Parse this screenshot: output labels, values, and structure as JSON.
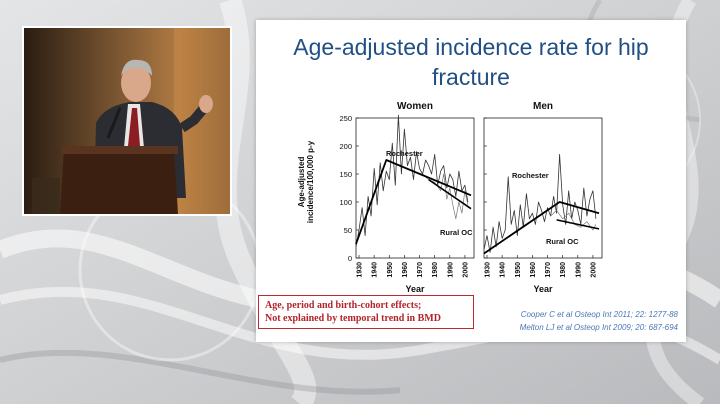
{
  "slide": {
    "title_line1": "Age-adjusted incidence rate for hip",
    "title_line2": "fracture",
    "note_line1": "Age, period and birth-cohort effects;",
    "note_line2": "Not explained by temporal trend in BMD",
    "ref1": "Cooper C et al Osteop Int 2011; 22: 1277-88",
    "ref2": "Melton LJ et al Osteop Int 2009; 20: 687-694"
  },
  "chart_data": {
    "type": "line",
    "ylabel_line1": "Age-adjusted",
    "ylabel_line2": "incidence/100,000 p-y",
    "ylim": [
      0,
      250
    ],
    "yticks": [
      0,
      50,
      100,
      150,
      200,
      250
    ],
    "panels": [
      {
        "title": "Women",
        "xlabel": "Year",
        "xlim": [
          1928,
          2006
        ],
        "xticks": [
          1930,
          1940,
          1950,
          1960,
          1970,
          1980,
          1990,
          2000
        ],
        "annotations": [
          "Rochester",
          "Rural OC"
        ],
        "series": [
          {
            "x": [
              1928,
              1930,
              1932,
              1934,
              1936,
              1938,
              1940,
              1942,
              1944,
              1946,
              1948,
              1950,
              1952,
              1954,
              1956,
              1958,
              1960,
              1962,
              1964,
              1966,
              1968,
              1970,
              1972,
              1974,
              1976,
              1978,
              1980,
              1982,
              1984,
              1986,
              1988,
              1990,
              1992,
              1994,
              1996,
              1998,
              2000,
              2002
            ],
            "y": [
              20,
              50,
              90,
              40,
              110,
              75,
              160,
              95,
              170,
              120,
              155,
              140,
              205,
              130,
              255,
              150,
              230,
              165,
              180,
              140,
              190,
              160,
              150,
              175,
              165,
              150,
              185,
              130,
              155,
              165,
              125,
              150,
              140,
              110,
              155,
              120,
              130,
              100
            ]
          },
          {
            "x": [
              1972,
              1976,
              1980,
              1984,
              1986,
              1988,
              1990,
              1992,
              1994,
              1996,
              1998,
              2000,
              2002
            ],
            "y": [
              150,
              140,
              135,
              120,
              150,
              105,
              125,
              95,
              70,
              100,
              80,
              120,
              95
            ]
          },
          {
            "x": [
              1928,
              1948,
              2004
            ],
            "y": [
              25,
              175,
              112
            ]
          },
          {
            "x": [
              1976,
              2004
            ],
            "y": [
              140,
              88
            ]
          }
        ]
      },
      {
        "title": "Men",
        "xlabel": "Year",
        "xlim": [
          1928,
          2006
        ],
        "xticks": [
          1930,
          1940,
          1950,
          1960,
          1970,
          1980,
          1990,
          2000
        ],
        "annotations": [
          "Rochester",
          "Rural OC"
        ],
        "series": [
          {
            "x": [
              1928,
              1930,
              1932,
              1934,
              1936,
              1938,
              1940,
              1942,
              1944,
              1946,
              1948,
              1950,
              1952,
              1954,
              1956,
              1958,
              1960,
              1962,
              1964,
              1966,
              1968,
              1970,
              1972,
              1974,
              1976,
              1978,
              1980,
              1982,
              1984,
              1986,
              1988,
              1990,
              1992,
              1994,
              1996,
              1998,
              2000,
              2002
            ],
            "y": [
              15,
              40,
              10,
              55,
              20,
              65,
              35,
              50,
              145,
              60,
              85,
              40,
              95,
              55,
              115,
              70,
              80,
              60,
              100,
              85,
              65,
              90,
              75,
              110,
              80,
              185,
              95,
              60,
              120,
              70,
              100,
              85,
              60,
              125,
              75,
              105,
              120,
              70
            ]
          },
          {
            "x": [
              1972,
              1976,
              1980,
              1984,
              1988,
              1992,
              1996,
              2000,
              2002
            ],
            "y": [
              75,
              85,
              70,
              80,
              60,
              55,
              65,
              50,
              60
            ]
          },
          {
            "x": [
              1928,
              1978,
              2004
            ],
            "y": [
              8,
              100,
              80
            ]
          },
          {
            "x": [
              1976,
              2004
            ],
            "y": [
              68,
              52
            ]
          }
        ]
      }
    ]
  }
}
